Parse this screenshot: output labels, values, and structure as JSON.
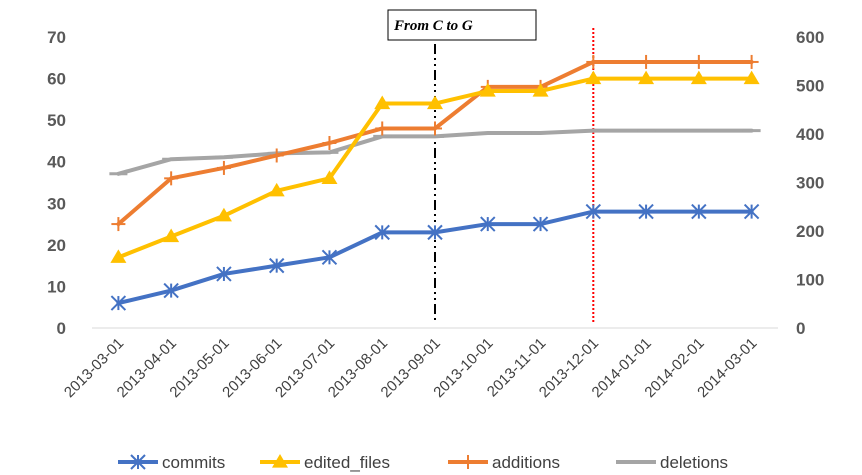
{
  "chart_data": {
    "type": "line",
    "title": "",
    "categories": [
      "2013-03-01",
      "2013-04-01",
      "2013-05-01",
      "2013-06-01",
      "2013-07-01",
      "2013-08-01",
      "2013-09-01",
      "2013-10-01",
      "2013-11-01",
      "2013-12-01",
      "2014-01-01",
      "2014-02-01",
      "2014-03-01"
    ],
    "y_left": {
      "min": 0,
      "max": 70,
      "ticks": [
        0,
        10,
        20,
        30,
        40,
        50,
        60,
        70
      ]
    },
    "y_right": {
      "min": 0,
      "max": 600,
      "ticks": [
        0,
        100,
        200,
        300,
        400,
        500,
        600
      ]
    },
    "series": [
      {
        "name": "commits",
        "axis": "left",
        "color": "#4472C4",
        "marker": "asterisk",
        "values": [
          6,
          9,
          13,
          15,
          17,
          23,
          23,
          25,
          25,
          28,
          28,
          28,
          28
        ]
      },
      {
        "name": "edited_files",
        "axis": "left",
        "color": "#FFC000",
        "marker": "triangle",
        "values": [
          17,
          22,
          27,
          33,
          36,
          54,
          54,
          57,
          57,
          60,
          60,
          60,
          60
        ]
      },
      {
        "name": "additions",
        "axis": "left",
        "color": "#ED7D31",
        "marker": "plus",
        "values": [
          25,
          36,
          38.5,
          41.5,
          44.5,
          48,
          48,
          58,
          58,
          64,
          64,
          64,
          64
        ]
      },
      {
        "name": "deletions",
        "axis": "right",
        "color": "#A5A5A5",
        "marker": "dash",
        "values": [
          318,
          348,
          352,
          360,
          362,
          395,
          395,
          402,
          402,
          407,
          407,
          407,
          407
        ]
      }
    ],
    "annotations": [
      {
        "text": "From C to G",
        "at_category": "2013-09-01",
        "style": "dash-dot",
        "color": "#000000"
      },
      {
        "at_category": "2013-12-01",
        "style": "dotted",
        "color": "#FF0000"
      }
    ],
    "legend_position": "bottom"
  }
}
